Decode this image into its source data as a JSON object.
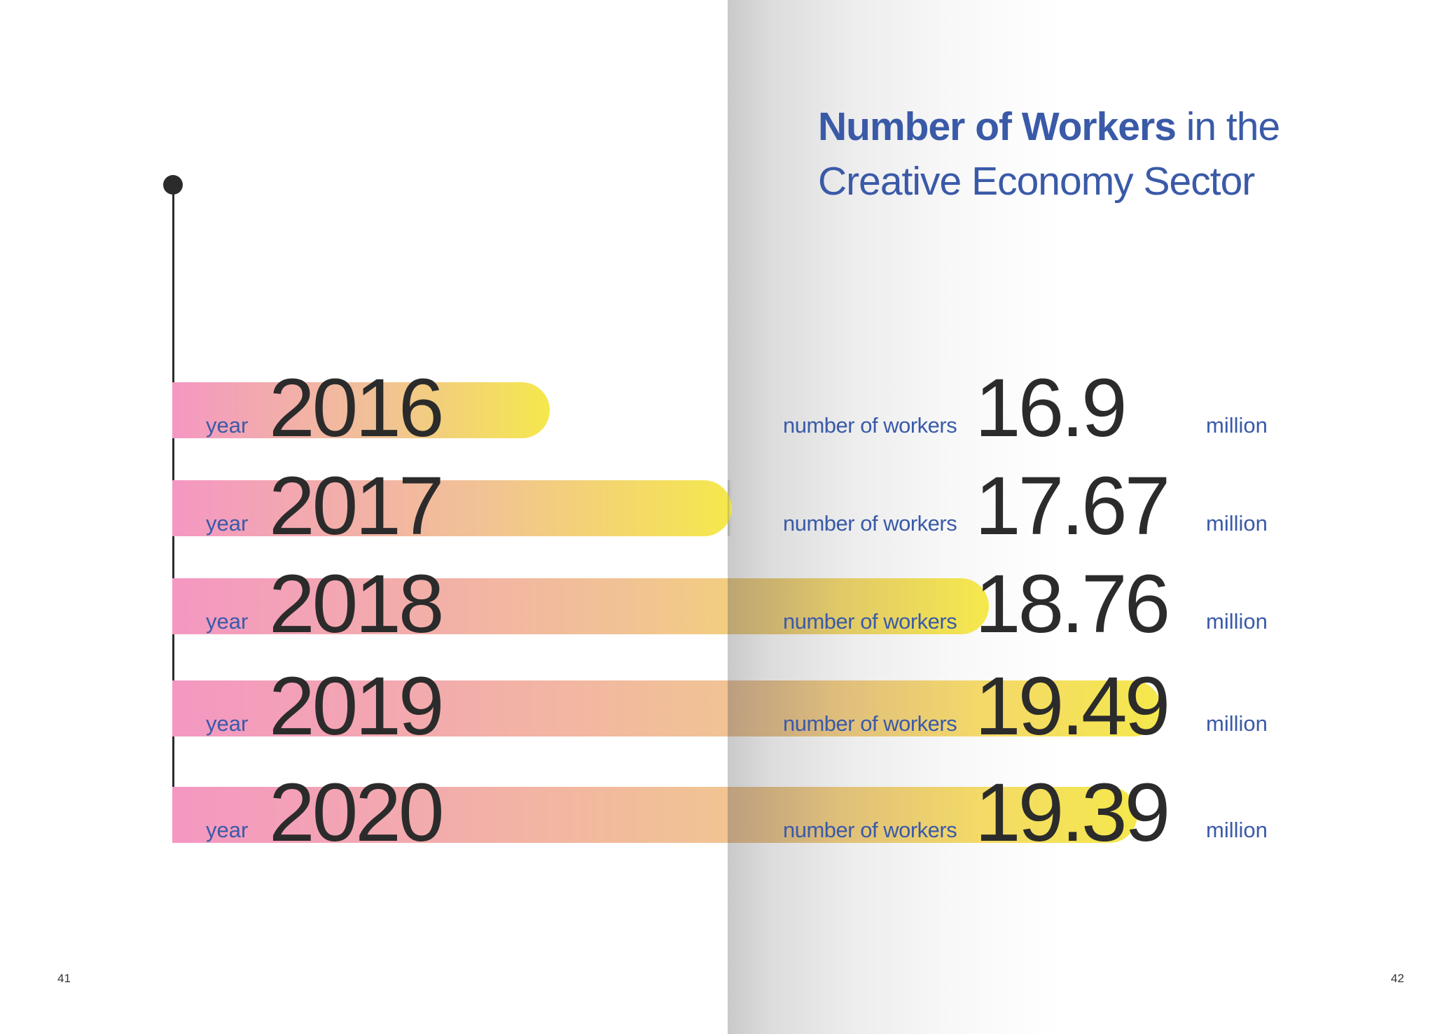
{
  "title": {
    "bold": "Number of Workers",
    "rest_line1": " in the",
    "line2": "Creative Economy Sector"
  },
  "labels": {
    "year": "year",
    "workers": "number of workers",
    "unit": "million"
  },
  "colors": {
    "accent": "#3a5aa8",
    "bar_start": "#f497c2",
    "bar_mid": "#f1c295",
    "bar_end": "#f5e84c",
    "text_dark": "#2b2b2b"
  },
  "page_numbers": {
    "left": "41",
    "right": "42"
  },
  "chart_data": {
    "type": "bar",
    "orientation": "horizontal",
    "title": "Number of Workers in the Creative Economy Sector",
    "categories": [
      "2016",
      "2017",
      "2018",
      "2019",
      "2020"
    ],
    "values": [
      16.9,
      17.67,
      18.76,
      19.49,
      19.39
    ],
    "value_labels": [
      "16.9",
      "17.67",
      "18.76",
      "19.49",
      "19.39"
    ],
    "unit": "million",
    "xlabel": "",
    "ylabel": ""
  }
}
